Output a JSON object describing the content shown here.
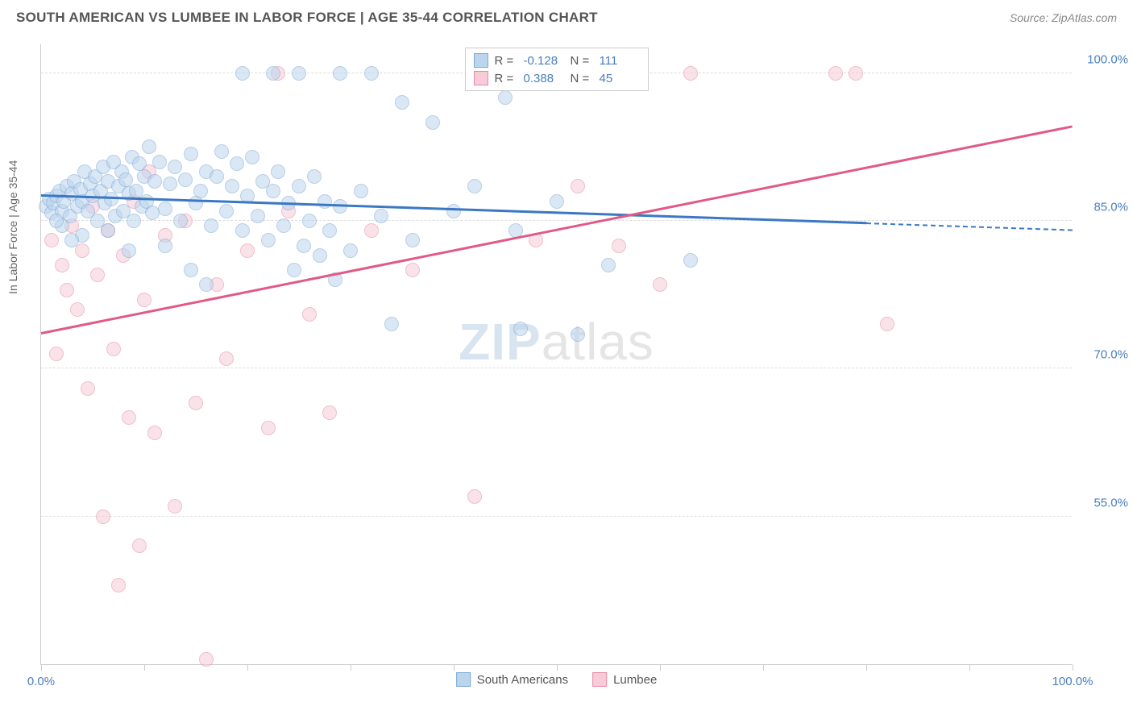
{
  "header": {
    "title": "SOUTH AMERICAN VS LUMBEE IN LABOR FORCE | AGE 35-44 CORRELATION CHART",
    "source": "Source: ZipAtlas.com"
  },
  "chart": {
    "type": "scatter",
    "ylabel": "In Labor Force | Age 35-44",
    "xlim": [
      0,
      100
    ],
    "ylim": [
      40,
      103
    ],
    "yticks": [
      {
        "v": 55.0,
        "label": "55.0%"
      },
      {
        "v": 70.0,
        "label": "70.0%"
      },
      {
        "v": 85.0,
        "label": "85.0%"
      },
      {
        "v": 100.0,
        "label": "100.0%"
      }
    ],
    "xticks": [
      0,
      10,
      20,
      30,
      40,
      50,
      60,
      70,
      80,
      90,
      100
    ],
    "xtick_labels": [
      {
        "v": 0,
        "label": "0.0%"
      },
      {
        "v": 100,
        "label": "100.0%"
      }
    ],
    "background_color": "#ffffff",
    "grid_color": "#dddddd",
    "axis_color": "#cccccc",
    "tick_label_color": "#4a7ebb",
    "ylabel_color": "#666666",
    "marker_radius": 9,
    "marker_stroke_width": 1.5,
    "watermark": {
      "bold": "ZIP",
      "rest": "atlas"
    },
    "series": [
      {
        "name": "South Americans",
        "fill": "#bcd5ee",
        "stroke": "#7fa9d4",
        "fill_opacity": 0.55,
        "r": -0.128,
        "n": 111,
        "trend": {
          "x1": 0,
          "y1": 87.5,
          "x2": 80,
          "y2": 84.7,
          "x2_dash": 100,
          "y2_dash": 84.0,
          "color": "#3b78c4",
          "width": 2.5
        },
        "points": [
          [
            0.5,
            86.5
          ],
          [
            0.8,
            87.2
          ],
          [
            1.0,
            85.8
          ],
          [
            1.2,
            86.8
          ],
          [
            1.5,
            87.5
          ],
          [
            1.8,
            88.0
          ],
          [
            2.0,
            86.0
          ],
          [
            2.2,
            87.0
          ],
          [
            2.5,
            88.5
          ],
          [
            2.8,
            85.5
          ],
          [
            3.0,
            87.8
          ],
          [
            3.2,
            89.0
          ],
          [
            3.5,
            86.5
          ],
          [
            3.8,
            88.2
          ],
          [
            4.0,
            87.0
          ],
          [
            4.2,
            90.0
          ],
          [
            4.5,
            86.0
          ],
          [
            4.8,
            88.8
          ],
          [
            5.0,
            87.5
          ],
          [
            5.2,
            89.5
          ],
          [
            5.5,
            85.0
          ],
          [
            5.8,
            88.0
          ],
          [
            6.0,
            90.5
          ],
          [
            6.2,
            86.8
          ],
          [
            6.5,
            89.0
          ],
          [
            6.8,
            87.2
          ],
          [
            7.0,
            91.0
          ],
          [
            7.2,
            85.5
          ],
          [
            7.5,
            88.5
          ],
          [
            7.8,
            90.0
          ],
          [
            8.0,
            86.0
          ],
          [
            8.2,
            89.2
          ],
          [
            8.5,
            87.8
          ],
          [
            8.8,
            91.5
          ],
          [
            9.0,
            85.0
          ],
          [
            9.2,
            88.0
          ],
          [
            9.5,
            90.8
          ],
          [
            9.8,
            86.5
          ],
          [
            10.0,
            89.5
          ],
          [
            10.2,
            87.0
          ],
          [
            10.5,
            92.5
          ],
          [
            10.8,
            85.8
          ],
          [
            11.0,
            89.0
          ],
          [
            11.5,
            91.0
          ],
          [
            12.0,
            86.2
          ],
          [
            12.5,
            88.8
          ],
          [
            13.0,
            90.5
          ],
          [
            13.5,
            85.0
          ],
          [
            14.0,
            89.2
          ],
          [
            14.5,
            91.8
          ],
          [
            15.0,
            86.8
          ],
          [
            15.5,
            88.0
          ],
          [
            16.0,
            90.0
          ],
          [
            16.5,
            84.5
          ],
          [
            17.0,
            89.5
          ],
          [
            17.5,
            92.0
          ],
          [
            18.0,
            86.0
          ],
          [
            18.5,
            88.5
          ],
          [
            19.0,
            90.8
          ],
          [
            19.5,
            84.0
          ],
          [
            20.0,
            87.5
          ],
          [
            20.5,
            91.5
          ],
          [
            21.0,
            85.5
          ],
          [
            21.5,
            89.0
          ],
          [
            22.0,
            83.0
          ],
          [
            22.5,
            88.0
          ],
          [
            23.0,
            90.0
          ],
          [
            23.5,
            84.5
          ],
          [
            24.0,
            86.8
          ],
          [
            24.5,
            80.0
          ],
          [
            25.0,
            88.5
          ],
          [
            25.5,
            82.5
          ],
          [
            26.0,
            85.0
          ],
          [
            26.5,
            89.5
          ],
          [
            27.0,
            81.5
          ],
          [
            27.5,
            87.0
          ],
          [
            28.0,
            84.0
          ],
          [
            28.5,
            79.0
          ],
          [
            29.0,
            86.5
          ],
          [
            30.0,
            82.0
          ],
          [
            31.0,
            88.0
          ],
          [
            32.0,
            100.0
          ],
          [
            33.0,
            85.5
          ],
          [
            34.0,
            74.5
          ],
          [
            35.0,
            97.0
          ],
          [
            36.0,
            83.0
          ],
          [
            38.0,
            95.0
          ],
          [
            40.0,
            86.0
          ],
          [
            42.0,
            88.5
          ],
          [
            45.0,
            97.5
          ],
          [
            46.0,
            84.0
          ],
          [
            46.5,
            74.0
          ],
          [
            48.0,
            100.0
          ],
          [
            50.0,
            87.0
          ],
          [
            52.0,
            73.5
          ],
          [
            55.0,
            80.5
          ],
          [
            58.0,
            100.0
          ],
          [
            63.0,
            81.0
          ],
          [
            19.5,
            100.0
          ],
          [
            22.5,
            100.0
          ],
          [
            25.0,
            100.0
          ],
          [
            29.0,
            100.0
          ],
          [
            12.0,
            82.5
          ],
          [
            14.5,
            80.0
          ],
          [
            16.0,
            78.5
          ],
          [
            8.5,
            82.0
          ],
          [
            4.0,
            83.5
          ],
          [
            6.5,
            84.0
          ],
          [
            3.0,
            83.0
          ],
          [
            2.0,
            84.5
          ],
          [
            1.5,
            85.0
          ]
        ]
      },
      {
        "name": "Lumbee",
        "fill": "#f7ccd8",
        "stroke": "#e48aa5",
        "fill_opacity": 0.55,
        "r": 0.388,
        "n": 45,
        "trend": {
          "x1": 0,
          "y1": 73.5,
          "x2": 100,
          "y2": 94.5,
          "color": "#e15a87",
          "width": 2.5
        },
        "points": [
          [
            1.0,
            83.0
          ],
          [
            1.5,
            71.5
          ],
          [
            2.0,
            80.5
          ],
          [
            2.5,
            78.0
          ],
          [
            3.0,
            84.5
          ],
          [
            3.5,
            76.0
          ],
          [
            4.0,
            82.0
          ],
          [
            4.5,
            68.0
          ],
          [
            5.0,
            86.5
          ],
          [
            5.5,
            79.5
          ],
          [
            6.0,
            55.0
          ],
          [
            6.5,
            84.0
          ],
          [
            7.0,
            72.0
          ],
          [
            7.5,
            48.0
          ],
          [
            8.0,
            81.5
          ],
          [
            8.5,
            65.0
          ],
          [
            9.0,
            87.0
          ],
          [
            9.5,
            52.0
          ],
          [
            10.0,
            77.0
          ],
          [
            10.5,
            90.0
          ],
          [
            11.0,
            63.5
          ],
          [
            12.0,
            83.5
          ],
          [
            13.0,
            56.0
          ],
          [
            14.0,
            85.0
          ],
          [
            15.0,
            66.5
          ],
          [
            16.0,
            40.5
          ],
          [
            17.0,
            78.5
          ],
          [
            18.0,
            71.0
          ],
          [
            20.0,
            82.0
          ],
          [
            22.0,
            64.0
          ],
          [
            24.0,
            86.0
          ],
          [
            26.0,
            75.5
          ],
          [
            28.0,
            65.5
          ],
          [
            32.0,
            84.0
          ],
          [
            36.0,
            80.0
          ],
          [
            42.0,
            57.0
          ],
          [
            48.0,
            83.0
          ],
          [
            52.0,
            88.5
          ],
          [
            56.0,
            82.5
          ],
          [
            60.0,
            78.5
          ],
          [
            63.0,
            100.0
          ],
          [
            77.0,
            100.0
          ],
          [
            79.0,
            100.0
          ],
          [
            82.0,
            74.5
          ],
          [
            23.0,
            100.0
          ]
        ]
      }
    ],
    "bottom_legend": [
      {
        "swatch_fill": "#bcd5ee",
        "swatch_stroke": "#7fa9d4",
        "label": "South Americans"
      },
      {
        "swatch_fill": "#f7ccd8",
        "swatch_stroke": "#e48aa5",
        "label": "Lumbee"
      }
    ]
  }
}
